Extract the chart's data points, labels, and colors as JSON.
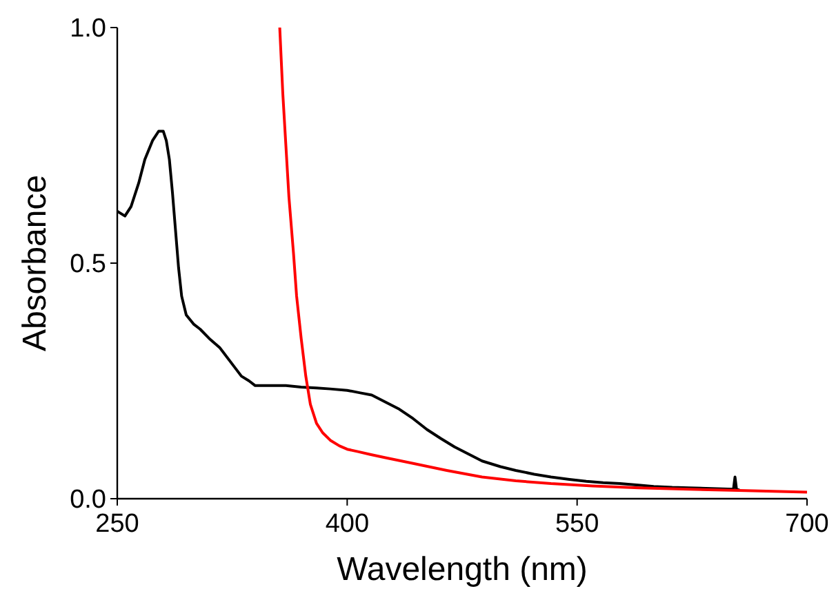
{
  "chart_data": {
    "type": "line",
    "xlabel": "Wavelength (nm)",
    "ylabel": "Absorbance",
    "xlim": [
      250,
      700
    ],
    "xticks": [
      250,
      400,
      550,
      700
    ],
    "ylim": [
      0,
      1
    ],
    "yticks": [
      {
        "value": 0,
        "label": "0.0"
      },
      {
        "value": 0.5,
        "label": "0.5"
      },
      {
        "value": 1,
        "label": "1.0"
      }
    ],
    "grid": false,
    "marker": "none",
    "line_style": "solid",
    "series": [
      {
        "color": "#000000",
        "x": [
          250,
          255,
          259,
          264,
          268,
          273,
          277,
          280,
          282,
          284,
          286,
          288,
          290,
          292,
          295,
          300,
          304,
          310,
          317,
          324,
          331,
          336,
          340,
          346,
          353,
          360,
          370,
          380,
          389,
          400,
          408,
          416,
          425,
          434,
          443,
          452,
          461,
          470,
          479,
          488,
          500,
          510,
          522,
          533,
          545,
          556,
          567,
          578,
          590,
          600,
          612,
          623,
          634,
          645,
          652,
          653,
          654,
          655,
          656
        ],
        "values": [
          0.61,
          0.6,
          0.62,
          0.67,
          0.72,
          0.76,
          0.78,
          0.78,
          0.76,
          0.72,
          0.65,
          0.57,
          0.49,
          0.43,
          0.39,
          0.37,
          0.36,
          0.34,
          0.32,
          0.29,
          0.26,
          0.25,
          0.24,
          0.24,
          0.24,
          0.24,
          0.237,
          0.235,
          0.233,
          0.23,
          0.225,
          0.22,
          0.205,
          0.19,
          0.17,
          0.147,
          0.128,
          0.11,
          0.095,
          0.08,
          0.068,
          0.06,
          0.052,
          0.046,
          0.041,
          0.037,
          0.034,
          0.032,
          0.029,
          0.026,
          0.024,
          0.023,
          0.022,
          0.021,
          0.02,
          0.046,
          0.02,
          0.019,
          0.018
        ]
      },
      {
        "color": "#ff0000",
        "x": [
          356,
          358,
          360,
          362,
          365,
          367,
          370,
          373,
          376,
          380,
          384,
          389,
          395,
          400,
          407,
          415,
          425,
          443,
          465,
          488,
          510,
          533,
          560,
          590,
          623,
          660,
          700
        ],
        "values": [
          1.0,
          0.86,
          0.75,
          0.64,
          0.52,
          0.43,
          0.34,
          0.26,
          0.2,
          0.16,
          0.14,
          0.124,
          0.112,
          0.105,
          0.1,
          0.094,
          0.087,
          0.075,
          0.06,
          0.046,
          0.038,
          0.032,
          0.027,
          0.023,
          0.02,
          0.017,
          0.014
        ]
      }
    ]
  }
}
